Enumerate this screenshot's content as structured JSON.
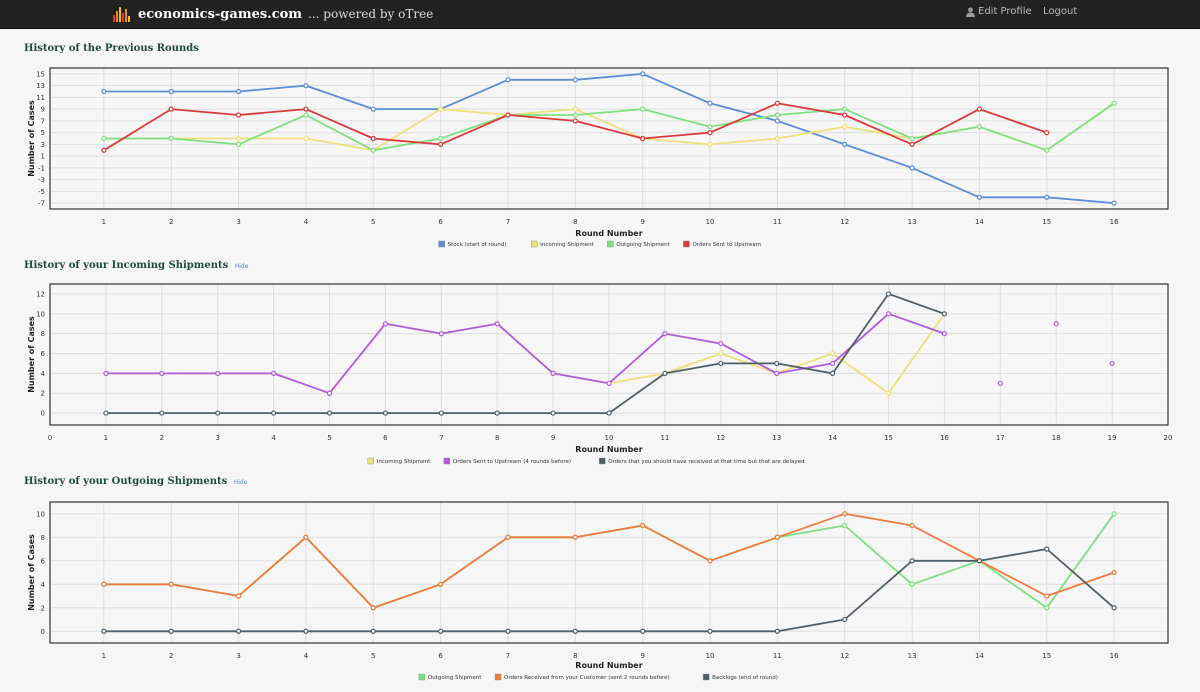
{
  "nav": {
    "site_name": "economics-games.com",
    "powered_by": "... powered by oTree",
    "edit_profile": "Edit Profile",
    "logout": "Logout"
  },
  "sections": {
    "previous_rounds": {
      "title": "History of the Previous Rounds"
    },
    "incoming": {
      "title": "History of your Incoming Shipments",
      "hide": "Hide"
    },
    "outgoing": {
      "title": "History of your Outgoing Shipments",
      "hide": "Hide"
    }
  },
  "colors": {
    "stock": "#5b8dd9",
    "incoming": "#f0e07a",
    "outgoing": "#7ee07e",
    "orders_upstream": "#d93a3a",
    "orders_4back": "#b25be0",
    "delayed": "#4f5f68",
    "customer_orders": "#ef7b3c",
    "backlogs": "#4f5f68"
  },
  "chart_data": [
    {
      "type": "line",
      "title": "History of the Previous Rounds",
      "xlabel": "Round Number",
      "ylabel": "Number of Cases",
      "x_ticks": [
        1,
        2,
        3,
        4,
        5,
        6,
        7,
        8,
        9,
        10,
        11,
        12,
        13,
        14,
        15,
        16
      ],
      "y_ticks": [
        15,
        13,
        11,
        9,
        7,
        5,
        3,
        1,
        -1,
        -3,
        -5,
        -7
      ],
      "xlim": [
        0.2,
        16.8
      ],
      "ylim": [
        -8,
        16
      ],
      "series": [
        {
          "name": "Stock (start of round)",
          "color_key": "stock",
          "x": [
            1,
            2,
            3,
            4,
            5,
            6,
            7,
            8,
            9,
            10,
            11,
            12,
            13,
            14,
            15,
            16
          ],
          "values": [
            12,
            12,
            12,
            13,
            9,
            9,
            14,
            14,
            15,
            10,
            7,
            3,
            -1,
            -6,
            -6,
            -7
          ]
        },
        {
          "name": "Incoming Shipment",
          "color_key": "incoming",
          "x": [
            1,
            2,
            3,
            4,
            5,
            6,
            7,
            8,
            9,
            10,
            11,
            12,
            13,
            14,
            15,
            16
          ],
          "values": [
            4,
            4,
            4,
            4,
            2,
            9,
            8,
            9,
            4,
            3,
            4,
            6,
            4,
            6,
            2,
            10
          ]
        },
        {
          "name": "Outgoing Shipment",
          "color_key": "outgoing",
          "x": [
            1,
            2,
            3,
            4,
            5,
            6,
            7,
            8,
            9,
            10,
            11,
            12,
            13,
            14,
            15,
            16
          ],
          "values": [
            4,
            4,
            3,
            8,
            2,
            4,
            8,
            8,
            9,
            6,
            8,
            9,
            4,
            6,
            2,
            10
          ]
        },
        {
          "name": "Orders Sent to Upstream",
          "color_key": "orders_upstream",
          "x": [
            1,
            2,
            3,
            4,
            5,
            6,
            7,
            8,
            9,
            10,
            11,
            12,
            13,
            14,
            15
          ],
          "values": [
            2,
            9,
            8,
            9,
            4,
            3,
            8,
            7,
            4,
            5,
            10,
            8,
            3,
            9,
            5
          ]
        }
      ]
    },
    {
      "type": "line",
      "title": "History of your Incoming Shipments",
      "xlabel": "Round Number",
      "ylabel": "Number of Cases",
      "x_ticks": [
        0,
        1,
        2,
        3,
        4,
        5,
        6,
        7,
        8,
        9,
        10,
        11,
        12,
        13,
        14,
        15,
        16,
        17,
        18,
        19,
        20
      ],
      "y_ticks": [
        12,
        10,
        8,
        6,
        4,
        2,
        0
      ],
      "xlim": [
        0,
        20
      ],
      "ylim": [
        -1.2,
        13
      ],
      "series": [
        {
          "name": "Incoming Shipment",
          "color_key": "incoming",
          "x": [
            1,
            2,
            3,
            4,
            5,
            6,
            7,
            8,
            9,
            10,
            11,
            12,
            13,
            14,
            15,
            16
          ],
          "values": [
            4,
            4,
            4,
            4,
            2,
            9,
            8,
            9,
            4,
            3,
            4,
            6,
            4,
            6,
            2,
            10
          ]
        },
        {
          "name": "Orders Sent to Upstream (4 rounds before)",
          "color_key": "orders_4back",
          "x": [
            1,
            2,
            3,
            4,
            5,
            6,
            7,
            8,
            9,
            10,
            11,
            12,
            13,
            14,
            15,
            16,
            17,
            18,
            19
          ],
          "values": [
            4,
            4,
            4,
            4,
            2,
            9,
            8,
            9,
            4,
            3,
            8,
            7,
            4,
            5,
            10,
            8,
            3,
            9,
            5
          ],
          "line_until": 16
        },
        {
          "name": "Orders that you should have received at that time but that are delayed",
          "color_key": "delayed",
          "x": [
            1,
            2,
            3,
            4,
            5,
            6,
            7,
            8,
            9,
            10,
            11,
            12,
            13,
            14,
            15,
            16
          ],
          "values": [
            0,
            0,
            0,
            0,
            0,
            0,
            0,
            0,
            0,
            0,
            4,
            5,
            5,
            4,
            12,
            10
          ]
        }
      ]
    },
    {
      "type": "line",
      "title": "History of your Outgoing Shipments",
      "xlabel": "Round Number",
      "ylabel": "Number of Cases",
      "x_ticks": [
        1,
        2,
        3,
        4,
        5,
        6,
        7,
        8,
        9,
        10,
        11,
        12,
        13,
        14,
        15,
        16
      ],
      "y_ticks": [
        10,
        8,
        6,
        4,
        2,
        0
      ],
      "xlim": [
        0.2,
        16.8
      ],
      "ylim": [
        -1,
        11
      ],
      "series": [
        {
          "name": "Outgoing Shipment",
          "color_key": "outgoing",
          "x": [
            1,
            2,
            3,
            4,
            5,
            6,
            7,
            8,
            9,
            10,
            11,
            12,
            13,
            14,
            15,
            16
          ],
          "values": [
            4,
            4,
            3,
            8,
            2,
            4,
            8,
            8,
            9,
            6,
            8,
            9,
            4,
            6,
            2,
            10
          ]
        },
        {
          "name": "Orders Received from your Customer (sent 2 rounds before)",
          "color_key": "customer_orders",
          "x": [
            1,
            2,
            3,
            4,
            5,
            6,
            7,
            8,
            9,
            10,
            11,
            12,
            13,
            14,
            15,
            16
          ],
          "values": [
            4,
            4,
            3,
            8,
            2,
            4,
            8,
            8,
            9,
            6,
            8,
            10,
            9,
            6,
            3,
            5
          ]
        },
        {
          "name": "Backlogs (end of round)",
          "color_key": "backlogs",
          "x": [
            1,
            2,
            3,
            4,
            5,
            6,
            7,
            8,
            9,
            10,
            11,
            12,
            13,
            14,
            15,
            16
          ],
          "values": [
            0,
            0,
            0,
            0,
            0,
            0,
            0,
            0,
            0,
            0,
            0,
            1,
            6,
            6,
            7,
            2
          ]
        }
      ]
    }
  ]
}
